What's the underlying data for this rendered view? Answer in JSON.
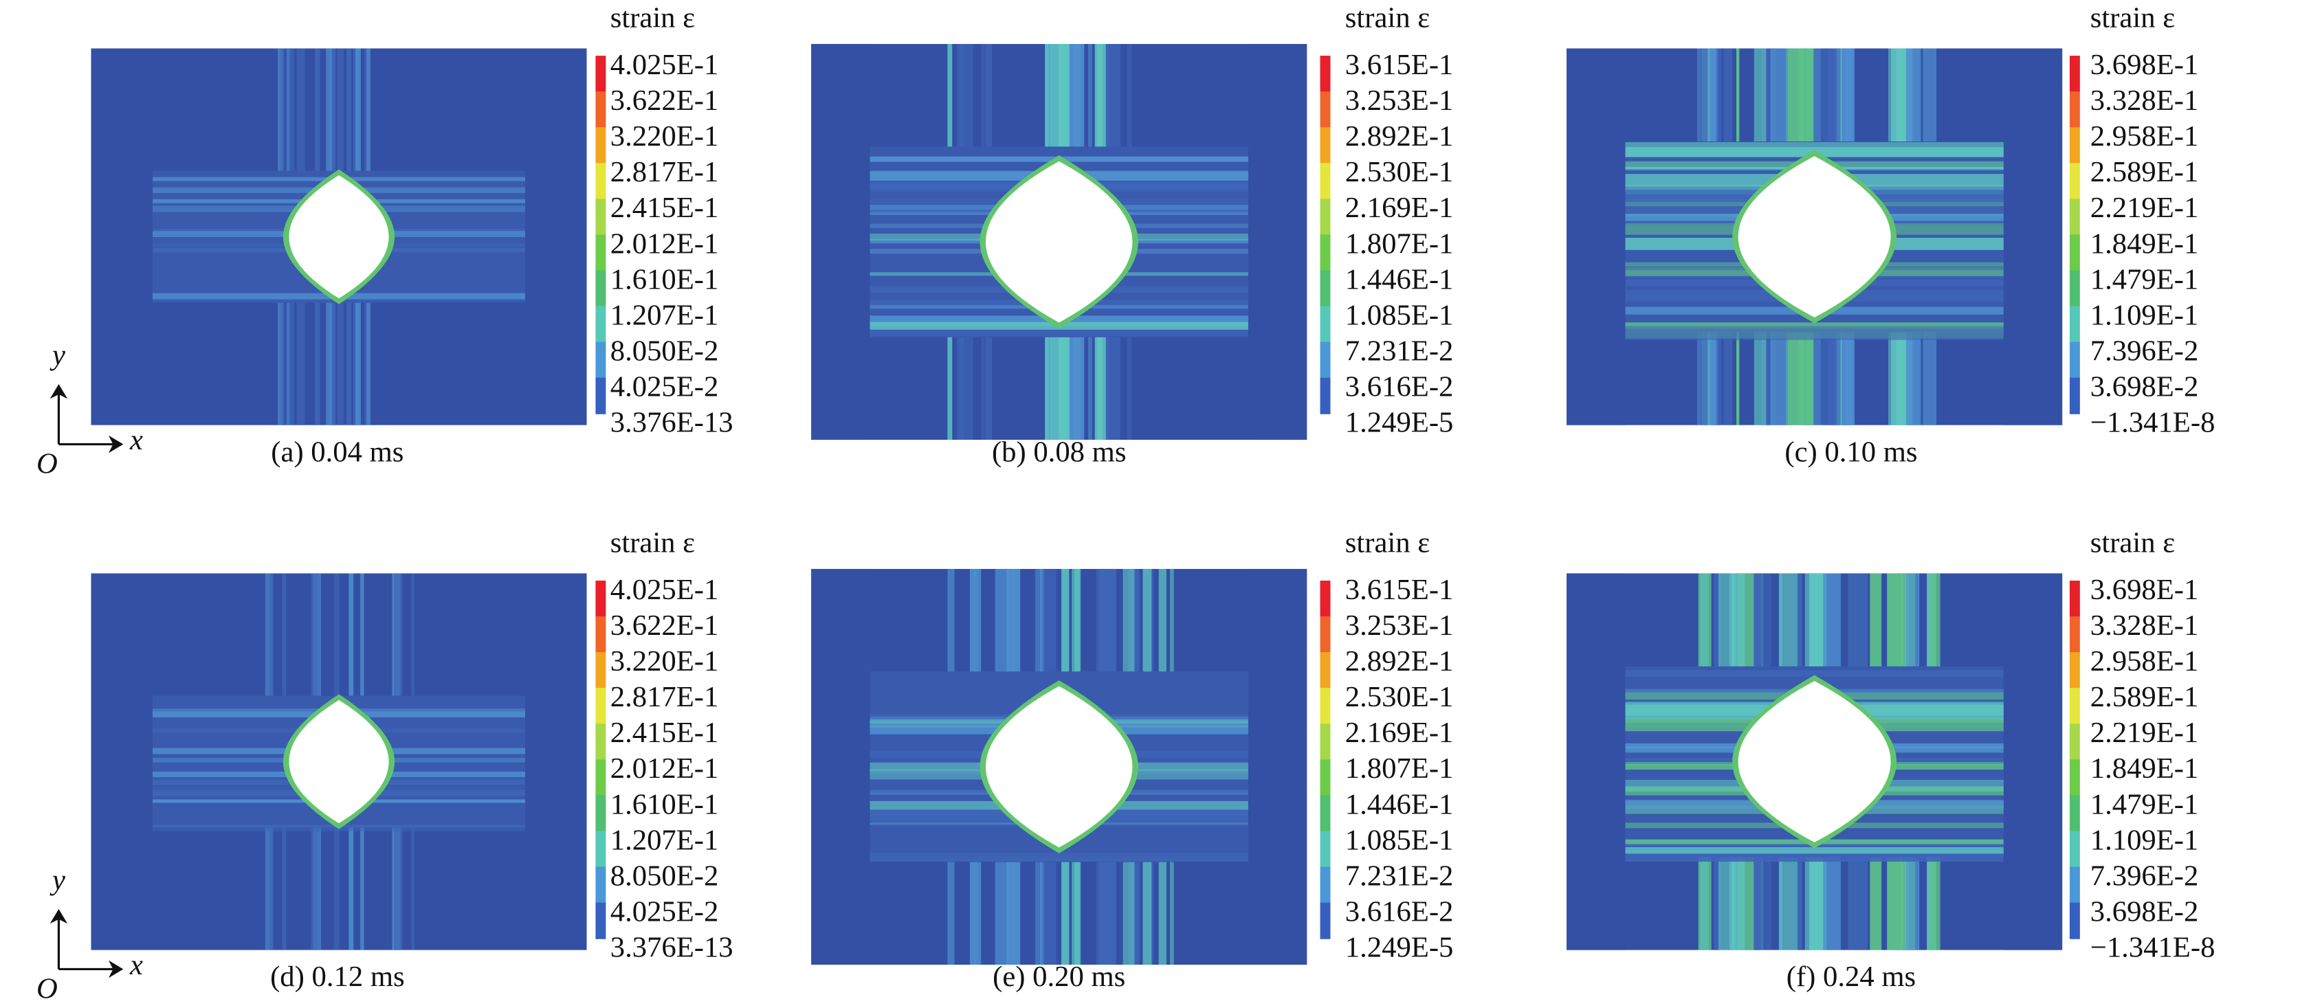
{
  "panels": [
    {
      "caption": "(a) 0.04 ms",
      "colorbar": {
        "title": "strain ε",
        "labels": [
          "4.025E-1",
          "3.622E-1",
          "3.220E-1",
          "2.817E-1",
          "2.415E-1",
          "2.012E-1",
          "1.610E-1",
          "1.207E-1",
          "8.050E-2",
          "4.025E-2",
          "3.376E-13"
        ]
      },
      "axes": {
        "y": "y",
        "x": "x",
        "origin": "O"
      }
    },
    {
      "caption": "(b) 0.08 ms",
      "colorbar": {
        "title": "strain ε",
        "labels": [
          "3.615E-1",
          "3.253E-1",
          "2.892E-1",
          "2.530E-1",
          "2.169E-1",
          "1.807E-1",
          "1.446E-1",
          "1.085E-1",
          "7.231E-2",
          "3.616E-2",
          "1.249E-5"
        ]
      }
    },
    {
      "caption": "(c) 0.10 ms",
      "colorbar": {
        "title": "strain ε",
        "labels": [
          "3.698E-1",
          "3.328E-1",
          "2.958E-1",
          "2.589E-1",
          "2.219E-1",
          "1.849E-1",
          "1.479E-1",
          "1.109E-1",
          "7.396E-2",
          "3.698E-2",
          "−1.341E-8"
        ]
      }
    },
    {
      "caption": "(d) 0.12 ms",
      "colorbar": {
        "title": "strain ε",
        "labels": [
          "4.025E-1",
          "3.622E-1",
          "3.220E-1",
          "2.817E-1",
          "2.415E-1",
          "2.012E-1",
          "1.610E-1",
          "1.207E-1",
          "8.050E-2",
          "4.025E-2",
          "3.376E-13"
        ]
      },
      "axes": {
        "y": "y",
        "x": "x",
        "origin": "O"
      }
    },
    {
      "caption": "(e) 0.20 ms",
      "colorbar": {
        "title": "strain ε",
        "labels": [
          "3.615E-1",
          "3.253E-1",
          "2.892E-1",
          "2.530E-1",
          "2.169E-1",
          "1.807E-1",
          "1.446E-1",
          "1.085E-1",
          "7.231E-2",
          "3.616E-2",
          "1.249E-5"
        ]
      }
    },
    {
      "caption": "(f) 0.24 ms",
      "colorbar": {
        "title": "strain ε",
        "labels": [
          "3.698E-1",
          "3.328E-1",
          "2.958E-1",
          "2.589E-1",
          "2.219E-1",
          "1.849E-1",
          "1.479E-1",
          "1.109E-1",
          "7.396E-2",
          "3.698E-2",
          "−1.341E-8"
        ]
      }
    }
  ]
}
